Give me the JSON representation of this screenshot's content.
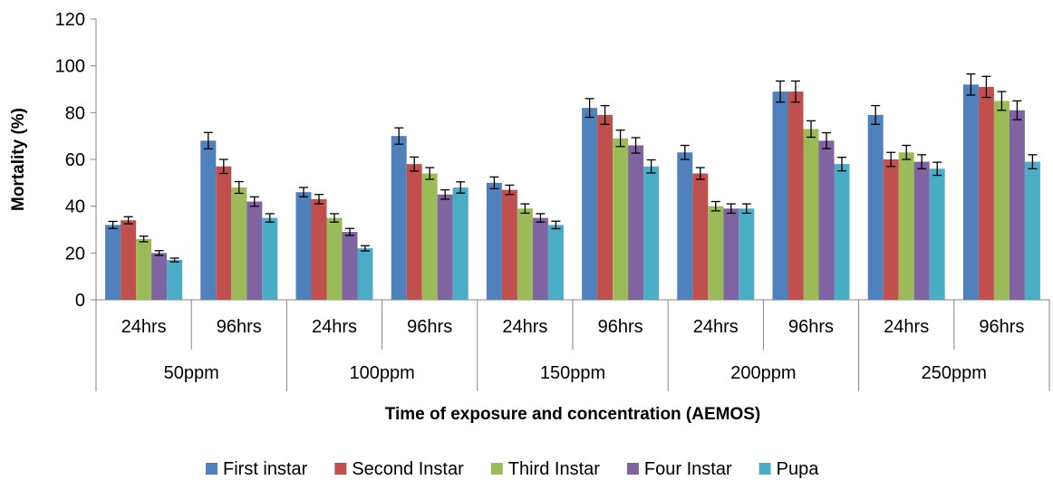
{
  "chart_data": {
    "type": "bar",
    "title": "",
    "xlabel": "Time of exposure and concentration (AEMOS)",
    "ylabel": "Mortality (%)",
    "ylim": [
      0,
      120
    ],
    "yticks": [
      0,
      20,
      40,
      60,
      80,
      100,
      120
    ],
    "grid": false,
    "legend_position": "bottom",
    "groups": [
      {
        "label": "50ppm",
        "categories": [
          "24hrs",
          "96hrs"
        ]
      },
      {
        "label": "100ppm",
        "categories": [
          "24hrs",
          "96hrs"
        ]
      },
      {
        "label": "150ppm",
        "categories": [
          "24hrs",
          "96hrs"
        ]
      },
      {
        "label": "200ppm",
        "categories": [
          "24hrs",
          "96hrs"
        ]
      },
      {
        "label": "250ppm",
        "categories": [
          "24hrs",
          "96hrs"
        ]
      }
    ],
    "series": [
      {
        "name": "First instar",
        "color": "#4F81BD",
        "values": [
          32,
          68,
          46,
          70,
          50,
          82,
          63,
          89,
          79,
          92
        ],
        "errors": [
          1.5,
          3.5,
          2,
          3.5,
          2.5,
          4,
          3,
          4.5,
          4,
          4.5
        ]
      },
      {
        "name": "Second Instar",
        "color": "#C0504D",
        "values": [
          34,
          57,
          43,
          58,
          47,
          79,
          54,
          89,
          60,
          91
        ],
        "errors": [
          1.5,
          3,
          2,
          3,
          2,
          4,
          2.5,
          4.5,
          3,
          4.5
        ]
      },
      {
        "name": "Third Instar",
        "color": "#9BBB59",
        "values": [
          26,
          48,
          35,
          54,
          39,
          69,
          40,
          73,
          63,
          85
        ],
        "errors": [
          1.2,
          2.5,
          1.8,
          2.5,
          2,
          3.5,
          2,
          3.5,
          3,
          4
        ]
      },
      {
        "name": "Four Instar",
        "color": "#8064A2",
        "values": [
          20,
          42,
          29,
          45,
          35,
          66,
          39,
          68,
          59,
          81
        ],
        "errors": [
          1,
          2,
          1.5,
          2,
          1.8,
          3.3,
          2,
          3.4,
          3,
          4
        ]
      },
      {
        "name": "Pupa",
        "color": "#4BACC6",
        "values": [
          17,
          35,
          22,
          48,
          32,
          57,
          39,
          58,
          56,
          59
        ],
        "errors": [
          0.8,
          1.8,
          1.1,
          2.4,
          1.6,
          2.8,
          2,
          2.9,
          2.8,
          3
        ]
      }
    ]
  }
}
